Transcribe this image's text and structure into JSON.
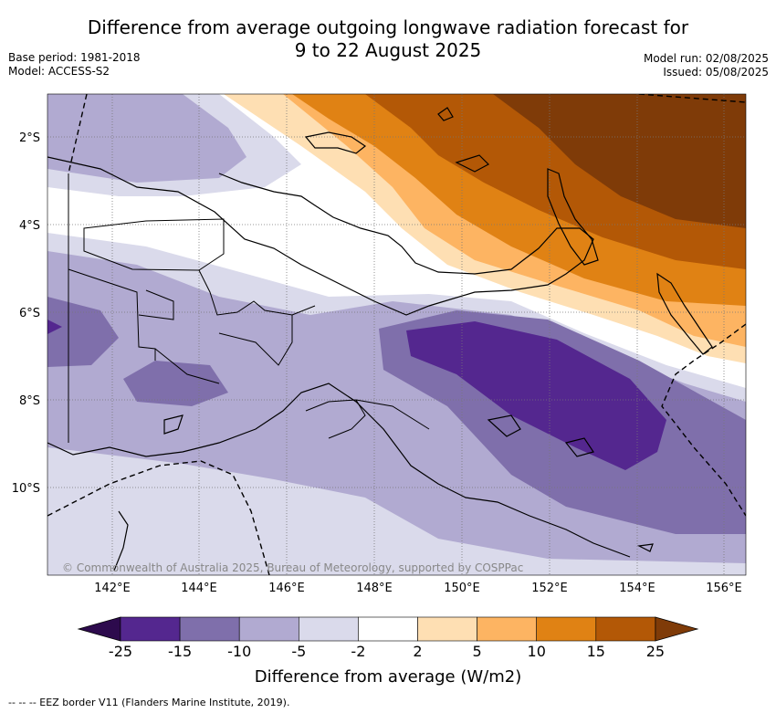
{
  "title_line1": "Difference from average outgoing longwave radiation forecast for",
  "title_line2": "9 to 22 August 2025",
  "meta_left": {
    "base_period": "Base period: 1981-2018",
    "model": "Model: ACCESS-S2"
  },
  "meta_right": {
    "model_run": "Model run: 02/08/2025",
    "issued": "Issued: 05/08/2025"
  },
  "lat_labels": [
    "2°S",
    "4°S",
    "6°S",
    "8°S",
    "10°S"
  ],
  "lon_labels": [
    "142°E",
    "144°E",
    "146°E",
    "148°E",
    "150°E",
    "152°E",
    "154°E",
    "156°E"
  ],
  "copyright": "© Commonwealth of Australia 2025, Bureau of Meteorology, supported by COSPPac",
  "colorbar": {
    "labels": [
      "-25",
      "-15",
      "-10",
      "-5",
      "-2",
      "2",
      "5",
      "10",
      "15",
      "25"
    ],
    "colors": [
      "#2d0a4d",
      "#54278f",
      "#7f6fab",
      "#b1aad1",
      "#dadaeb",
      "#ffffff",
      "#fedfb3",
      "#fdb462",
      "#e08214",
      "#b35806",
      "#7f3b08"
    ],
    "title": "Difference from average (W/m2)"
  },
  "footnote": "-- -- -- EEZ border V11 (Flanders Marine Institute, 2019)."
}
